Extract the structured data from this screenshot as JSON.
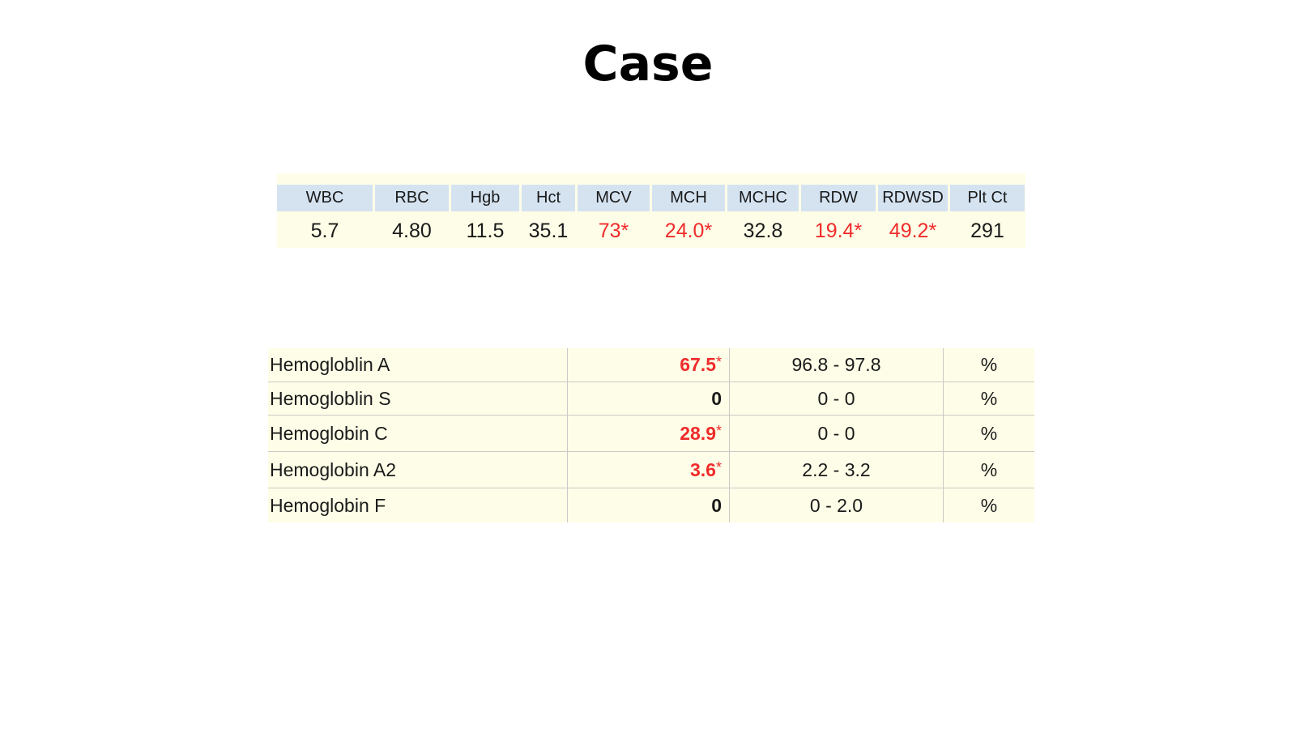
{
  "title": "Case",
  "cbc": {
    "headers": [
      "WBC",
      "RBC",
      "Hgb",
      "Hct",
      "MCV",
      "MCH",
      "MCHC",
      "RDW",
      "RDWSD",
      "Plt Ct"
    ],
    "values": [
      "5.7",
      "4.80",
      "11.5",
      "35.1",
      "73*",
      "24.0*",
      "32.8",
      "19.4*",
      "49.2*",
      "291"
    ],
    "flagged": [
      false,
      false,
      false,
      false,
      true,
      true,
      false,
      true,
      true,
      false
    ]
  },
  "hemoglobin": {
    "rows": [
      {
        "name": "Hemogloblin A",
        "value": "67.5",
        "flag": "*",
        "range": "96.8 - 97.8",
        "unit": "%"
      },
      {
        "name": "Hemogloblin S",
        "value": "0",
        "flag": "",
        "range": "0 - 0",
        "unit": "%"
      },
      {
        "name": "Hemoglobin C",
        "value": "28.9",
        "flag": "*",
        "range": "0 - 0",
        "unit": "%"
      },
      {
        "name": "Hemoglobin A2",
        "value": "3.6",
        "flag": "*",
        "range": "2.2 - 3.2",
        "unit": "%"
      },
      {
        "name": "Hemoglobin F",
        "value": "0",
        "flag": "",
        "range": "0 - 2.0",
        "unit": "%"
      }
    ]
  },
  "colors": {
    "flag": "#ef2b2b",
    "header_bg": "#d5e3f1",
    "table_bg": "#fefee8"
  }
}
